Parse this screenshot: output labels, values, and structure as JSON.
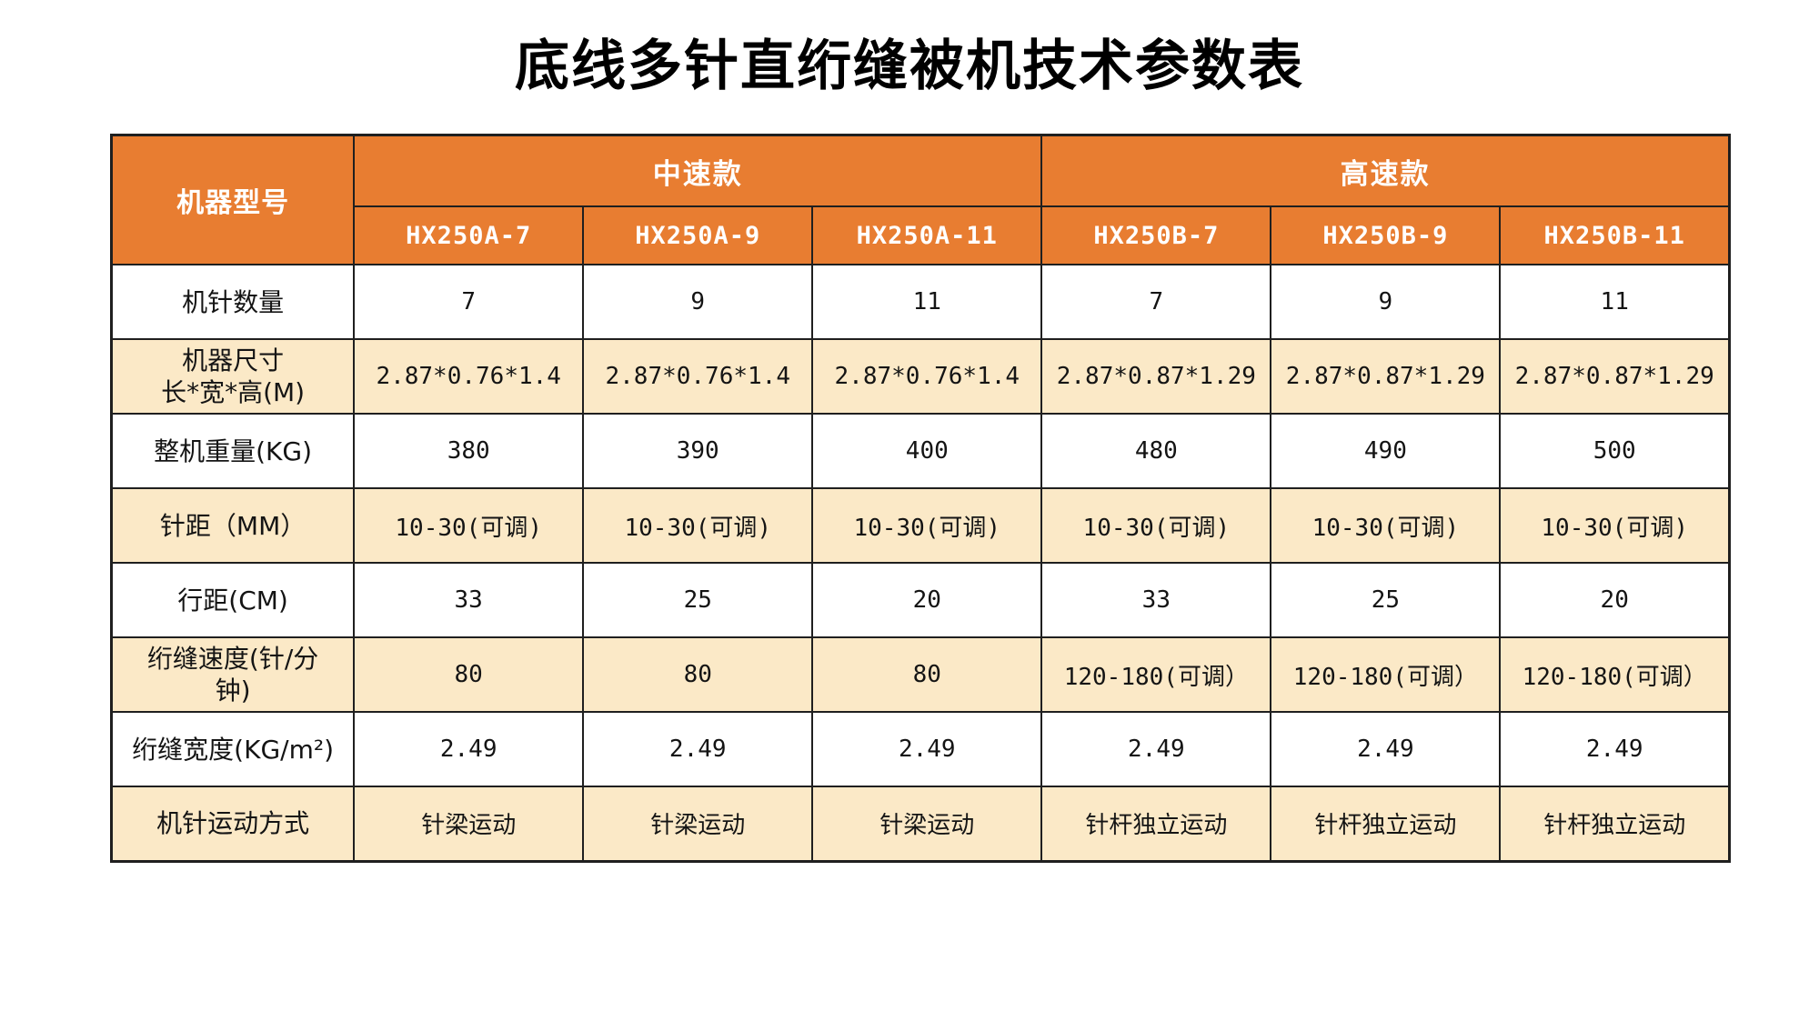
{
  "title": "底线多针直绗缝被机技术参数表",
  "colors": {
    "header_bg": "#E87D31",
    "header_text": "#FFFFFF",
    "shaded_row_bg": "#FBE9C7",
    "plain_row_bg": "#FFFFFF",
    "border": "#1F1F1F",
    "body_text": "#141414"
  },
  "table": {
    "corner_label": "机器型号",
    "groups": [
      {
        "label": "中速款",
        "models": [
          "HX250A-7",
          "HX250A-9",
          "HX250A-11"
        ]
      },
      {
        "label": "高速款",
        "models": [
          "HX250B-7",
          "HX250B-9",
          "HX250B-11"
        ]
      }
    ],
    "rows": [
      {
        "label": "机针数量",
        "shaded": false,
        "values": [
          "7",
          "9",
          "11",
          "7",
          "9",
          "11"
        ]
      },
      {
        "label": "机器尺寸\n长*宽*高(M)",
        "shaded": true,
        "values": [
          "2.87*0.76*1.4",
          "2.87*0.76*1.4",
          "2.87*0.76*1.4",
          "2.87*0.87*1.29",
          "2.87*0.87*1.29",
          "2.87*0.87*1.29"
        ]
      },
      {
        "label": "整机重量(KG)",
        "shaded": false,
        "values": [
          "380",
          "390",
          "400",
          "480",
          "490",
          "500"
        ]
      },
      {
        "label": "针距（MM）",
        "shaded": true,
        "values": [
          "10-30(可调)",
          "10-30(可调)",
          "10-30(可调)",
          "10-30(可调)",
          "10-30(可调)",
          "10-30(可调)"
        ]
      },
      {
        "label": "行距(CM)",
        "shaded": false,
        "values": [
          "33",
          "25",
          "20",
          "33",
          "25",
          "20"
        ]
      },
      {
        "label": "绗缝速度(针/分\n钟)",
        "shaded": true,
        "values": [
          "80",
          "80",
          "80",
          "120-180(可调）",
          "120-180(可调）",
          "120-180(可调）"
        ]
      },
      {
        "label": "绗缝宽度(KG/m²)",
        "shaded": false,
        "values": [
          "2.49",
          "2.49",
          "2.49",
          "2.49",
          "2.49",
          "2.49"
        ]
      },
      {
        "label": "机针运动方式",
        "shaded": true,
        "values": [
          "针梁运动",
          "针梁运动",
          "针梁运动",
          "针杆独立运动",
          "针杆独立运动",
          "针杆独立运动"
        ]
      }
    ]
  }
}
